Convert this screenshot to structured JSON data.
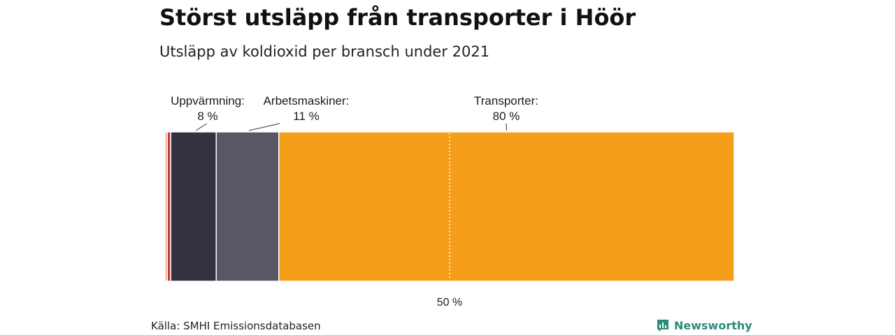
{
  "header": {
    "title": "Störst utsläpp från transporter i Höör",
    "subtitle": "Utsläpp av koldioxid per bransch under 2021"
  },
  "footer": {
    "source": "Källa: SMHI Emissionsdatabasen",
    "brand": "Newsworthy",
    "brand_color": "#2e8b7a"
  },
  "chart_data": {
    "type": "bar",
    "orientation": "stacked-horizontal-100",
    "xlim": [
      0,
      100
    ],
    "reference_line": {
      "value": 50,
      "label": "50 %"
    },
    "segments": [
      {
        "name": "",
        "value": 0.4,
        "color": "#f4a582"
      },
      {
        "name": "",
        "value": 0.6,
        "color": "#c43c3c"
      },
      {
        "name": "Uppvärmning",
        "value": 8,
        "label_title": "Uppvärmning:",
        "label_value": "8 %",
        "color": "#333140"
      },
      {
        "name": "Arbetsmaskiner",
        "value": 11,
        "label_title": "Arbetsmaskiner:",
        "label_value": "11 %",
        "color": "#595766"
      },
      {
        "name": "Transporter",
        "value": 80,
        "label_title": "Transporter:",
        "label_value": "80 %",
        "color": "#f59e1a"
      }
    ]
  }
}
